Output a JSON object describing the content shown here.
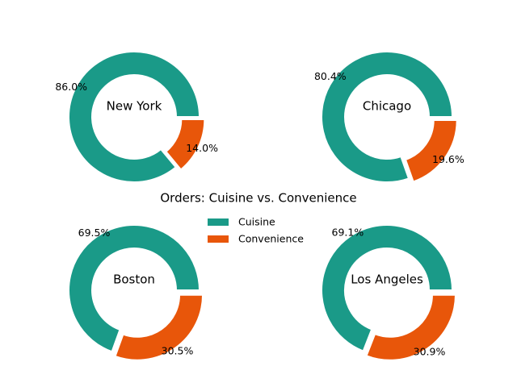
{
  "chart_data": {
    "type": "pie",
    "title": "Orders: Cuisine vs. Convenience",
    "legend": {
      "placement": "center",
      "entries": [
        "Cuisine",
        "Convenience"
      ]
    },
    "colors": {
      "Cuisine": "#1a9a88",
      "Convenience": "#e8560a"
    },
    "charts": [
      {
        "city": "New York",
        "slices": [
          {
            "label": "Cuisine",
            "value": 86.0,
            "text": "86.0%"
          },
          {
            "label": "Convenience",
            "value": 14.0,
            "text": "14.0%"
          }
        ]
      },
      {
        "city": "Chicago",
        "slices": [
          {
            "label": "Cuisine",
            "value": 80.4,
            "text": "80.4%"
          },
          {
            "label": "Convenience",
            "value": 19.6,
            "text": "19.6%"
          }
        ]
      },
      {
        "city": "Boston",
        "slices": [
          {
            "label": "Cuisine",
            "value": 69.5,
            "text": "69.5%"
          },
          {
            "label": "Convenience",
            "value": 30.5,
            "text": "30.5%"
          }
        ]
      },
      {
        "city": "Los Angeles",
        "slices": [
          {
            "label": "Cuisine",
            "value": 69.1,
            "text": "69.1%"
          },
          {
            "label": "Convenience",
            "value": 30.9,
            "text": "30.9%"
          }
        ]
      }
    ]
  }
}
